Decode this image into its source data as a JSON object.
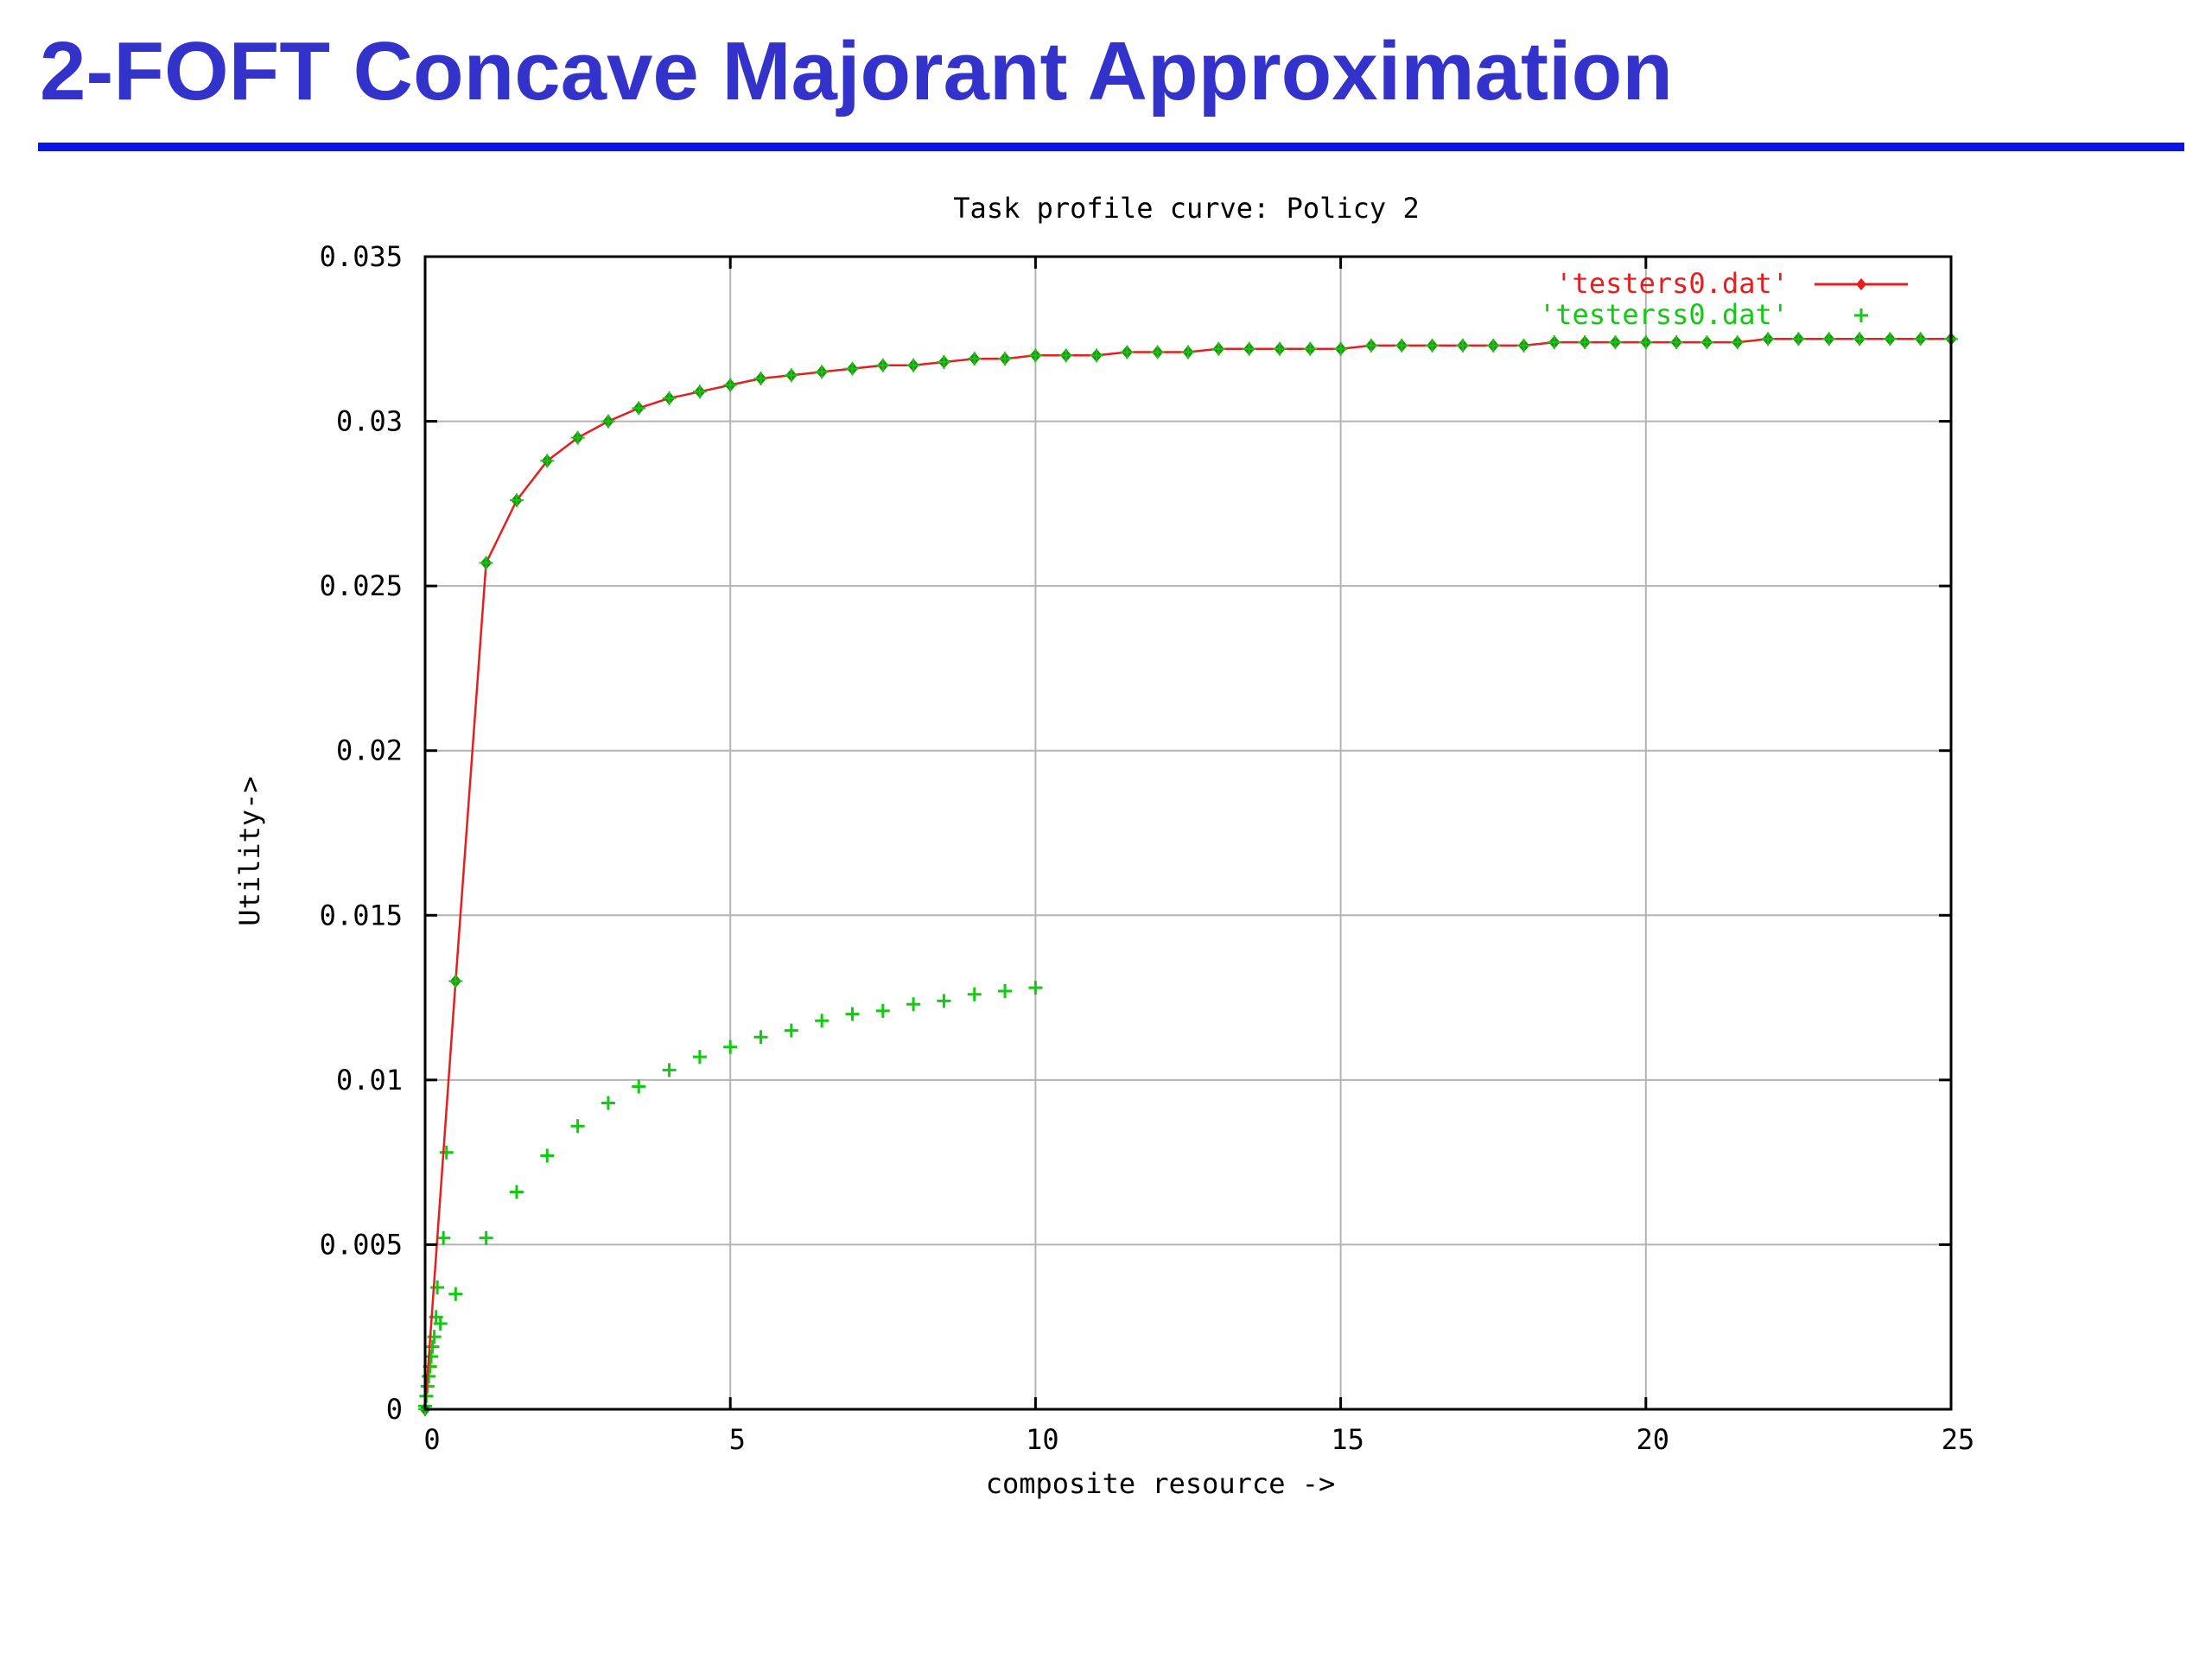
{
  "slide": {
    "title": "2-FOFT Concave Majorant Approximation"
  },
  "colors": {
    "title": "#3333cc",
    "rule": "#0a14e6",
    "series_line": "#e61e1e",
    "series_marker": "#2d8c14",
    "series_plus": "#14c814",
    "grid": "#b4b4b4"
  },
  "chart_data": {
    "type": "line",
    "title": "Task profile curve: Policy 2",
    "xlabel": "composite resource ->",
    "ylabel": "Utility->",
    "xlim": [
      0,
      25
    ],
    "ylim": [
      0,
      0.035
    ],
    "xticks": [
      0,
      5,
      10,
      15,
      20,
      25
    ],
    "xtick_labels": [
      "0",
      "5",
      "10",
      "15",
      "20",
      "25"
    ],
    "yticks": [
      0,
      0.005,
      0.01,
      0.015,
      0.02,
      0.025,
      0.03,
      0.035
    ],
    "ytick_labels": [
      "0",
      "0.005",
      "0.01",
      "0.015",
      "0.02",
      "0.025",
      "0.03",
      "0.035"
    ],
    "grid": true,
    "legend_position": "top-right",
    "series": [
      {
        "name": "'testers0.dat'",
        "style": "line-with-diamonds",
        "points": [
          [
            0,
            0
          ],
          [
            0.5,
            0.013
          ],
          [
            1,
            0.0257
          ],
          [
            1.5,
            0.0276
          ],
          [
            2,
            0.0288
          ],
          [
            2.5,
            0.0295
          ],
          [
            3,
            0.03
          ],
          [
            3.5,
            0.0304
          ],
          [
            4,
            0.0307
          ],
          [
            4.5,
            0.0309
          ],
          [
            5,
            0.0311
          ],
          [
            5.5,
            0.0313
          ],
          [
            6,
            0.0314
          ],
          [
            6.5,
            0.0315
          ],
          [
            7,
            0.0316
          ],
          [
            7.5,
            0.0317
          ],
          [
            8,
            0.0317
          ],
          [
            8.5,
            0.0318
          ],
          [
            9,
            0.0319
          ],
          [
            9.5,
            0.0319
          ],
          [
            10,
            0.032
          ],
          [
            10.5,
            0.032
          ],
          [
            11,
            0.032
          ],
          [
            11.5,
            0.0321
          ],
          [
            12,
            0.0321
          ],
          [
            12.5,
            0.0321
          ],
          [
            13,
            0.0322
          ],
          [
            13.5,
            0.0322
          ],
          [
            14,
            0.0322
          ],
          [
            14.5,
            0.0322
          ],
          [
            15,
            0.0322
          ],
          [
            15.5,
            0.0323
          ],
          [
            16,
            0.0323
          ],
          [
            16.5,
            0.0323
          ],
          [
            17,
            0.0323
          ],
          [
            17.5,
            0.0323
          ],
          [
            18,
            0.0323
          ],
          [
            18.5,
            0.0324
          ],
          [
            19,
            0.0324
          ],
          [
            19.5,
            0.0324
          ],
          [
            20,
            0.0324
          ],
          [
            20.5,
            0.0324
          ],
          [
            21,
            0.0324
          ],
          [
            21.5,
            0.0324
          ],
          [
            22,
            0.0325
          ],
          [
            22.5,
            0.0325
          ],
          [
            23,
            0.0325
          ],
          [
            23.5,
            0.0325
          ],
          [
            24,
            0.0325
          ],
          [
            24.5,
            0.0325
          ],
          [
            25,
            0.0325
          ]
        ]
      },
      {
        "name": "'testerss0.dat'",
        "style": "plus-markers",
        "points": [
          [
            0,
            0.0001
          ],
          [
            0.02,
            0.0004
          ],
          [
            0.04,
            0.0007
          ],
          [
            0.06,
            0.001
          ],
          [
            0.08,
            0.0013
          ],
          [
            0.1,
            0.0016
          ],
          [
            0.12,
            0.0019
          ],
          [
            0.15,
            0.0022
          ],
          [
            0.18,
            0.0028
          ],
          [
            0.2,
            0.0037
          ],
          [
            0.25,
            0.0026
          ],
          [
            0.3,
            0.0052
          ],
          [
            0.35,
            0.0078
          ],
          [
            0.5,
            0.0035
          ],
          [
            1,
            0.0052
          ],
          [
            1.5,
            0.0066
          ],
          [
            2,
            0.0077
          ],
          [
            2.5,
            0.0086
          ],
          [
            3,
            0.0093
          ],
          [
            3.5,
            0.0098
          ],
          [
            4,
            0.0103
          ],
          [
            4.5,
            0.0107
          ],
          [
            5,
            0.011
          ],
          [
            5.5,
            0.0113
          ],
          [
            6,
            0.0115
          ],
          [
            6.5,
            0.0118
          ],
          [
            7,
            0.012
          ],
          [
            7.5,
            0.0121
          ],
          [
            8,
            0.0123
          ],
          [
            8.5,
            0.0124
          ],
          [
            9,
            0.0126
          ],
          [
            9.5,
            0.0127
          ],
          [
            10,
            0.0128
          ]
        ]
      }
    ]
  }
}
